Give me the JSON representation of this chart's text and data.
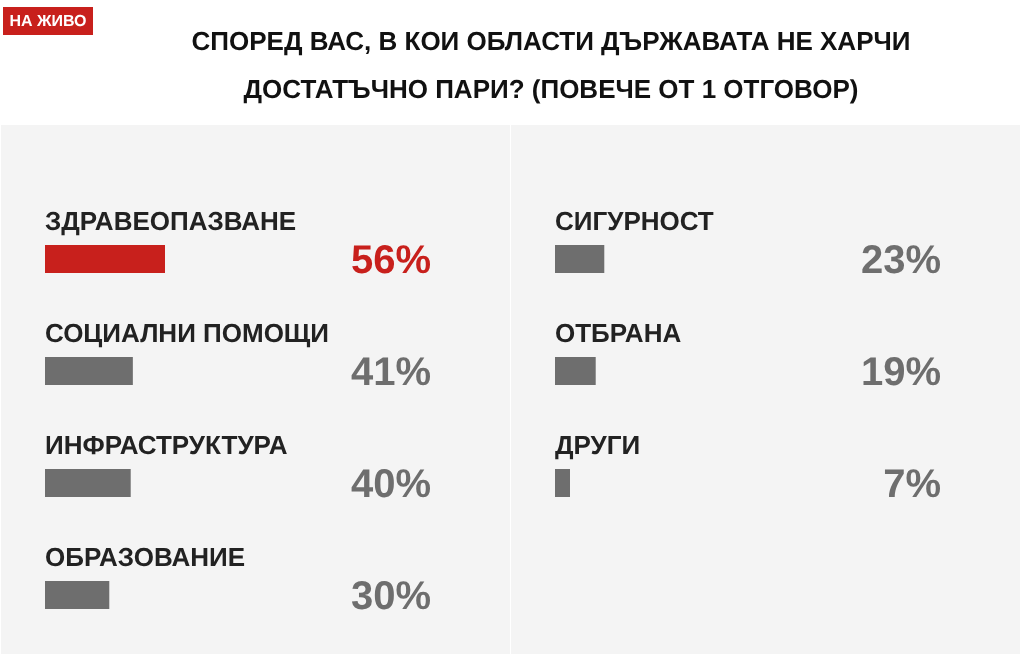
{
  "chart_data": [
    {
      "type": "bar",
      "orientation": "horizontal",
      "title": "СПОРЕД ВАС, В КОИ ОБЛАСТИ ДЪРЖАВАТА НЕ ХАРЧИ ДОСТАТЪЧНО ПАРИ? (ПОВЕЧЕ ОТ 1 ОТГОВОР)",
      "categories": [
        "ЗДРАВЕОПАЗВАНЕ",
        "СОЦИАЛНИ ПОМОЩИ",
        "ИНФРАСТРУКТУРА",
        "ОБРАЗОВАНИЕ"
      ],
      "values": [
        56,
        41,
        40,
        30
      ],
      "colors": [
        "#c8201c",
        "#6e6e6e",
        "#6e6e6e",
        "#6e6e6e"
      ],
      "value_labels": [
        "56%",
        "41%",
        "40%",
        "30%"
      ],
      "annotations": [
        "НА ЖИВО"
      ]
    },
    {
      "type": "bar",
      "orientation": "horizontal",
      "categories": [
        "СИГУРНОСТ",
        "ОТБРАНА",
        "ДРУГИ"
      ],
      "values": [
        23,
        19,
        7
      ],
      "colors": [
        "#6e6e6e",
        "#6e6e6e",
        "#6e6e6e"
      ],
      "value_labels": [
        "23%",
        "19%",
        "7%"
      ]
    }
  ]
}
